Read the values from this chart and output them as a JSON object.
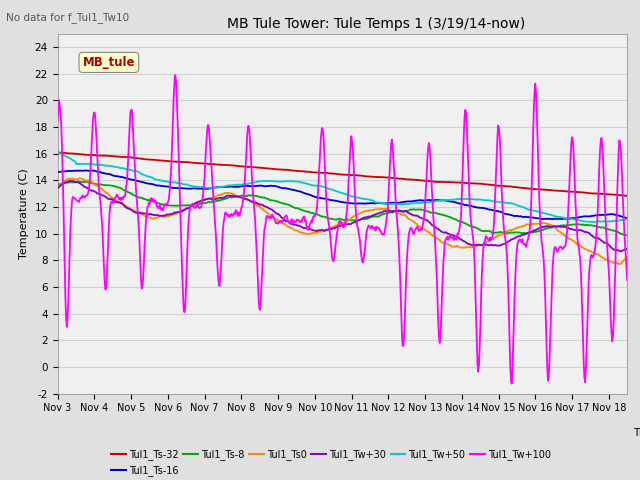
{
  "title": "MB Tule Tower: Tule Temps 1 (3/19/14-now)",
  "no_data_text": "No data for f_Tul1_Tw10",
  "ylabel": "Temperature (C)",
  "xlim": [
    0,
    15.5
  ],
  "ylim": [
    -2,
    25
  ],
  "yticks": [
    -2,
    0,
    2,
    4,
    6,
    8,
    10,
    12,
    14,
    16,
    18,
    20,
    22,
    24
  ],
  "xtick_labels": [
    "Nov 3",
    "Nov 4",
    "Nov 5",
    "Nov 6",
    "Nov 7",
    "Nov 8",
    "Nov 9",
    "Nov 10",
    "Nov 11",
    "Nov 12",
    "Nov 13",
    "Nov 14",
    "Nov 15",
    "Nov 16",
    "Nov 17",
    "Nov 18"
  ],
  "legend_box_label": "MB_tule",
  "background_color": "#e0e0e0",
  "plot_bg_color": "#f0f0f0",
  "grid_color": "#d0d0d0",
  "series": [
    {
      "name": "Tul1_Ts-32",
      "color": "#cc0000"
    },
    {
      "name": "Tul1_Ts-16",
      "color": "#0000cc"
    },
    {
      "name": "Tul1_Ts-8",
      "color": "#00aa00"
    },
    {
      "name": "Tul1_Ts0",
      "color": "#ff8800"
    },
    {
      "name": "Tul1_Tw+30",
      "color": "#8800cc"
    },
    {
      "name": "Tul1_Tw+50",
      "color": "#00cccc"
    },
    {
      "name": "Tul1_Tw+100",
      "color": "#ff00ff"
    }
  ]
}
